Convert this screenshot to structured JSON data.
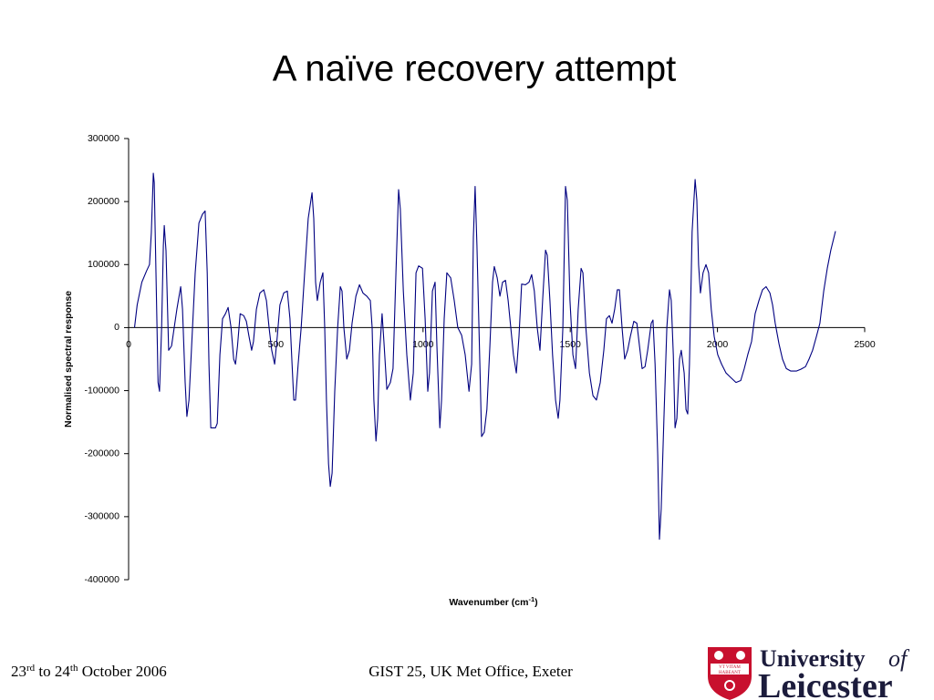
{
  "chart_data": {
    "type": "line",
    "title": "A naïve recovery attempt",
    "ylabel": "Normalised spectral response",
    "xlabel": {
      "text": "Wavenumber (cm",
      "sup": "-1",
      "end": ")"
    },
    "color": "#000080",
    "xlim": [
      0,
      2500
    ],
    "xticks": [
      0,
      500,
      1000,
      1500,
      2000,
      2500
    ],
    "ylim": [
      -400000,
      300000
    ],
    "yticks": [
      -400000,
      -300000,
      -200000,
      -100000,
      0,
      100000,
      200000,
      300000
    ],
    "x": [
      20,
      29,
      45,
      61,
      71,
      77,
      84,
      87,
      93,
      100,
      105,
      112,
      118,
      121,
      127,
      136,
      146,
      155,
      164,
      177,
      183,
      192,
      198,
      205,
      214,
      226,
      239,
      251,
      260,
      267,
      273,
      279,
      295,
      301,
      310,
      319,
      329,
      338,
      348,
      357,
      363,
      370,
      379,
      391,
      400,
      409,
      418,
      424,
      434,
      446,
      459,
      468,
      477,
      486,
      496,
      505,
      514,
      527,
      539,
      548,
      555,
      561,
      567,
      576,
      586,
      598,
      610,
      623,
      629,
      635,
      641,
      651,
      660,
      666,
      672,
      679,
      685,
      691,
      700,
      710,
      719,
      725,
      731,
      741,
      750,
      759,
      772,
      784,
      796,
      809,
      821,
      827,
      833,
      840,
      846,
      852,
      861,
      867,
      877,
      889,
      898,
      908,
      917,
      923,
      933,
      945,
      957,
      967,
      976,
      985,
      998,
      1007,
      1016,
      1022,
      1032,
      1041,
      1047,
      1057,
      1063,
      1072,
      1081,
      1094,
      1106,
      1118,
      1131,
      1143,
      1156,
      1165,
      1171,
      1177,
      1183,
      1193,
      1199,
      1208,
      1217,
      1227,
      1236,
      1242,
      1252,
      1261,
      1270,
      1280,
      1289,
      1298,
      1307,
      1317,
      1326,
      1335,
      1348,
      1360,
      1369,
      1378,
      1388,
      1397,
      1406,
      1416,
      1422,
      1431,
      1440,
      1450,
      1459,
      1465,
      1475,
      1484,
      1490,
      1499,
      1509,
      1518,
      1527,
      1537,
      1543,
      1553,
      1565,
      1577,
      1589,
      1602,
      1614,
      1623,
      1633,
      1642,
      1651,
      1660,
      1667,
      1676,
      1685,
      1695,
      1704,
      1716,
      1726,
      1735,
      1744,
      1754,
      1763,
      1775,
      1781,
      1788,
      1797,
      1803,
      1809,
      1818,
      1828,
      1837,
      1843,
      1850,
      1856,
      1862,
      1871,
      1877,
      1887,
      1893,
      1899,
      1905,
      1914,
      1924,
      1930,
      1936,
      1942,
      1951,
      1961,
      1970,
      1979,
      1989,
      2001,
      2014,
      2029,
      2045,
      2063,
      2079,
      2091,
      2103,
      2116,
      2128,
      2141,
      2153,
      2165,
      2178,
      2187,
      2196,
      2209,
      2221,
      2234,
      2249,
      2268,
      2283,
      2299,
      2311,
      2323,
      2336,
      2348,
      2361,
      2373,
      2385,
      2401
    ],
    "values": [
      0,
      36000,
      72000,
      90000,
      100000,
      150000,
      245000,
      230000,
      87000,
      -87000,
      -101000,
      0,
      130000,
      162000,
      122000,
      -36000,
      -29000,
      0,
      29000,
      65000,
      29000,
      -87000,
      -141000,
      -115000,
      -29000,
      87000,
      166000,
      180000,
      185000,
      87000,
      -58000,
      -159000,
      -159000,
      -152000,
      -43000,
      14000,
      22000,
      32000,
      0,
      -50000,
      -58000,
      -29000,
      22000,
      19000,
      10000,
      -14000,
      -36000,
      -22000,
      29000,
      55000,
      60000,
      43000,
      0,
      -36000,
      -58000,
      -14000,
      36000,
      55000,
      58000,
      14000,
      -58000,
      -115000,
      -115000,
      -58000,
      0,
      87000,
      173000,
      214000,
      173000,
      72000,
      43000,
      72000,
      87000,
      0,
      -115000,
      -216000,
      -252000,
      -231000,
      -101000,
      0,
      65000,
      58000,
      0,
      -50000,
      -36000,
      7000,
      50000,
      68000,
      55000,
      50000,
      43000,
      0,
      -115000,
      -180000,
      -144000,
      -43000,
      22000,
      -22000,
      -98000,
      -87000,
      -65000,
      87000,
      219000,
      188000,
      58000,
      -43000,
      -115000,
      -72000,
      87000,
      98000,
      94000,
      14000,
      -101000,
      -72000,
      58000,
      72000,
      -29000,
      -159000,
      -115000,
      14000,
      87000,
      79000,
      43000,
      0,
      -12000,
      -43000,
      -101000,
      -58000,
      144000,
      224000,
      130000,
      -58000,
      -173000,
      -166000,
      -130000,
      -29000,
      72000,
      97000,
      79000,
      50000,
      72000,
      75000,
      43000,
      0,
      -43000,
      -72000,
      -14000,
      69000,
      68000,
      72000,
      84000,
      58000,
      0,
      -36000,
      43000,
      123000,
      115000,
      43000,
      -43000,
      -115000,
      -144000,
      -115000,
      0,
      224000,
      202000,
      43000,
      -43000,
      -65000,
      29000,
      94000,
      87000,
      0,
      -72000,
      -108000,
      -115000,
      -87000,
      -36000,
      14000,
      19000,
      7000,
      29000,
      60000,
      60000,
      0,
      -50000,
      -36000,
      -14000,
      10000,
      7000,
      -29000,
      -65000,
      -62000,
      -36000,
      7000,
      12000,
      -58000,
      -202000,
      -336000,
      -288000,
      -144000,
      0,
      60000,
      43000,
      -43000,
      -159000,
      -144000,
      -50000,
      -36000,
      -72000,
      -130000,
      -137000,
      -58000,
      152000,
      235000,
      202000,
      100000,
      55000,
      87000,
      100000,
      87000,
      29000,
      -14000,
      -43000,
      -58000,
      -72000,
      -79000,
      -87000,
      -84000,
      -65000,
      -43000,
      -22000,
      22000,
      43000,
      60000,
      65000,
      55000,
      36000,
      7000,
      -26000,
      -50000,
      -65000,
      -69000,
      -69000,
      -66000,
      -62000,
      -50000,
      -36000,
      -14000,
      7000,
      58000,
      94000,
      123000,
      153000
    ]
  },
  "footer": {
    "date": [
      "23",
      "rd",
      " to 24",
      "th",
      " October 2006"
    ],
    "event": "GIST 25, UK Met Office, Exeter"
  },
  "logo": {
    "university": "University",
    "of": "of",
    "name": "Leicester",
    "motto": [
      "VT VITAM",
      "HABEANT"
    ]
  }
}
